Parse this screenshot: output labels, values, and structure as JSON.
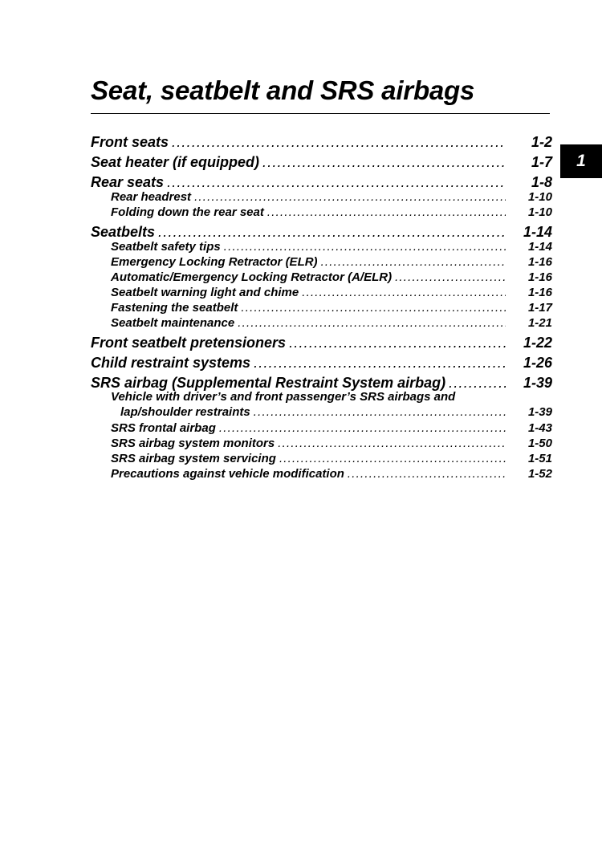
{
  "title": "Seat, seatbelt and SRS airbags",
  "chapter_tab": "1",
  "toc": [
    {
      "level": 1,
      "label": "Front seats",
      "page": "1-2"
    },
    {
      "level": 1,
      "label": "Seat heater (if equipped)",
      "page": "1-7"
    },
    {
      "level": 1,
      "label": "Rear seats",
      "page": "1-8"
    },
    {
      "level": 2,
      "label": "Rear headrest",
      "page": "1-10"
    },
    {
      "level": 2,
      "label": "Folding down the rear seat",
      "page": "1-10"
    },
    {
      "level": 1,
      "label": "Seatbelts",
      "page": "1-14"
    },
    {
      "level": 2,
      "label": "Seatbelt safety tips",
      "page": "1-14"
    },
    {
      "level": 2,
      "label": "Emergency Locking Retractor (ELR)",
      "page": "1-16"
    },
    {
      "level": 2,
      "label": "Automatic/Emergency Locking Retractor (A/ELR)",
      "page": "1-16"
    },
    {
      "level": 2,
      "label": "Seatbelt warning light and chime",
      "page": "1-16"
    },
    {
      "level": 2,
      "label": "Fastening the seatbelt",
      "page": "1-17"
    },
    {
      "level": 2,
      "label": "Seatbelt maintenance",
      "page": "1-21"
    },
    {
      "level": 1,
      "label": "Front seatbelt pretensioners",
      "page": "1-22"
    },
    {
      "level": 1,
      "label": "Child restraint systems",
      "page": "1-26"
    },
    {
      "level": 1,
      "label": "SRS airbag (Supplemental Restraint System airbag)",
      "page": "1-39"
    },
    {
      "level": 2,
      "label": "Vehicle with driver’s and front passenger’s SRS airbags and",
      "label_cont": "lap/shoulder restraints",
      "page": "1-39"
    },
    {
      "level": 2,
      "label": "SRS frontal airbag",
      "page": "1-43"
    },
    {
      "level": 2,
      "label": "SRS airbag system monitors",
      "page": "1-50"
    },
    {
      "level": 2,
      "label": "SRS airbag system servicing",
      "page": "1-51"
    },
    {
      "level": 2,
      "label": "Precautions against vehicle modification",
      "page": "1-52"
    }
  ]
}
